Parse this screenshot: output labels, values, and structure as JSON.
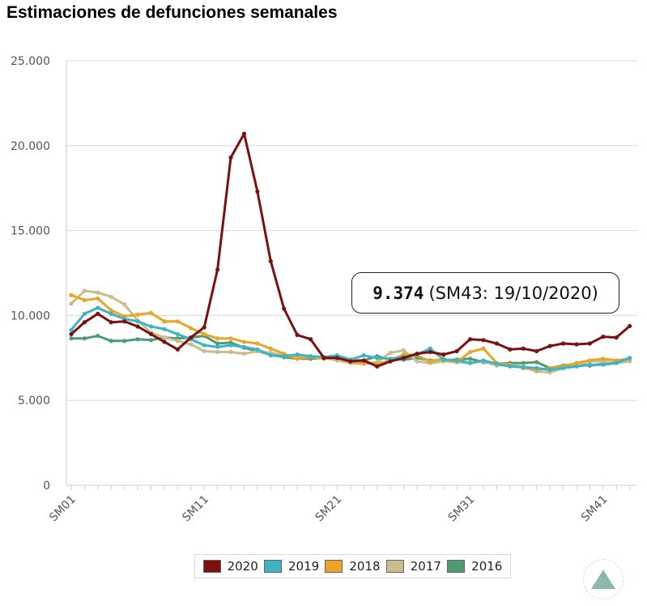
{
  "page_title": "Estimaciones de defunciones semanales",
  "tooltip": {
    "value": "9.374",
    "detail": "(SM43: 19/10/2020)"
  },
  "legend": [
    {
      "label": "2020",
      "color": "#7a1010"
    },
    {
      "label": "2019",
      "color": "#3cb4c4"
    },
    {
      "label": "2018",
      "color": "#e8a52a"
    },
    {
      "label": "2017",
      "color": "#c9bd8c"
    },
    {
      "label": "2016",
      "color": "#4e9a72"
    }
  ],
  "scroll_top_icon": "triangle-up-icon",
  "chart_data": {
    "type": "line",
    "title": "Estimaciones de defunciones semanales",
    "ylim": [
      0,
      25000
    ],
    "yticks": [
      {
        "value": 0,
        "label": "0"
      },
      {
        "value": 5000,
        "label": "5.000"
      },
      {
        "value": 10000,
        "label": "10.000"
      },
      {
        "value": 15000,
        "label": "15.000"
      },
      {
        "value": 20000,
        "label": "20.000"
      },
      {
        "value": 25000,
        "label": "25.000"
      }
    ],
    "xlim": [
      1,
      43
    ],
    "xticks": [
      {
        "value": 1,
        "label": "SM01"
      },
      {
        "value": 11,
        "label": "SM11"
      },
      {
        "value": 21,
        "label": "SM21"
      },
      {
        "value": 31,
        "label": "SM31"
      },
      {
        "value": 41,
        "label": "SM41"
      }
    ],
    "grid": true,
    "legend_position": "bottom",
    "series": [
      {
        "name": "2020",
        "color": "#7a1010",
        "values": [
          8900,
          9600,
          10100,
          9600,
          9650,
          9350,
          8900,
          8450,
          8000,
          8700,
          9300,
          12700,
          19300,
          20700,
          17300,
          13200,
          10400,
          8850,
          8600,
          7500,
          7500,
          7300,
          7350,
          7000,
          7300,
          7500,
          7750,
          7850,
          7700,
          7900,
          8600,
          8550,
          8350,
          8000,
          8050,
          7900,
          8200,
          8350,
          8300,
          8350,
          8750,
          8700,
          9374
        ]
      },
      {
        "name": "2019",
        "color": "#3cb4c4",
        "values": [
          9150,
          10100,
          10450,
          10100,
          9800,
          9650,
          9350,
          9200,
          8900,
          8600,
          8250,
          8150,
          8250,
          8150,
          8000,
          7650,
          7600,
          7700,
          7600,
          7550,
          7650,
          7400,
          7650,
          7500,
          7450,
          7550,
          7700,
          8050,
          7400,
          7350,
          7200,
          7350,
          7150,
          7000,
          6950,
          6900,
          6800,
          6900,
          7000,
          7100,
          7100,
          7200,
          7500
        ]
      },
      {
        "name": "2018",
        "color": "#e8a52a",
        "values": [
          11200,
          10900,
          11000,
          10300,
          9950,
          10050,
          10150,
          9650,
          9650,
          9250,
          8900,
          8650,
          8650,
          8450,
          8350,
          8050,
          7750,
          7450,
          7550,
          7450,
          7550,
          7250,
          7200,
          7150,
          7350,
          7700,
          7650,
          7300,
          7450,
          7250,
          7850,
          8050,
          7200,
          7100,
          6900,
          6800,
          6900,
          7000,
          7200,
          7350,
          7450,
          7350,
          7450
        ]
      },
      {
        "name": "2017",
        "color": "#c9bd8c",
        "values": [
          10700,
          11450,
          11350,
          11100,
          10650,
          9700,
          9000,
          8700,
          8500,
          8300,
          7900,
          7850,
          7850,
          7750,
          7900,
          7800,
          7650,
          7550,
          7600,
          7500,
          7350,
          7200,
          7150,
          7250,
          7800,
          7950,
          7300,
          7200,
          7300,
          7250,
          7200,
          7300,
          7050,
          7100,
          7000,
          6700,
          6650,
          6900,
          7100,
          7300,
          7300,
          7200,
          7300
        ]
      },
      {
        "name": "2016",
        "color": "#4e9a72",
        "values": [
          8650,
          8650,
          8800,
          8500,
          8500,
          8600,
          8550,
          8700,
          8650,
          8700,
          8800,
          8350,
          8400,
          8100,
          7900,
          7700,
          7550,
          7450,
          7450,
          7500,
          7550,
          7350,
          7350,
          7600,
          7400,
          7400,
          7500,
          7350,
          7350,
          7400,
          7450,
          7250,
          7150,
          7200,
          7200,
          7250,
          6900,
          7050,
          7150,
          7050,
          7150,
          7250,
          7500
        ]
      }
    ]
  }
}
